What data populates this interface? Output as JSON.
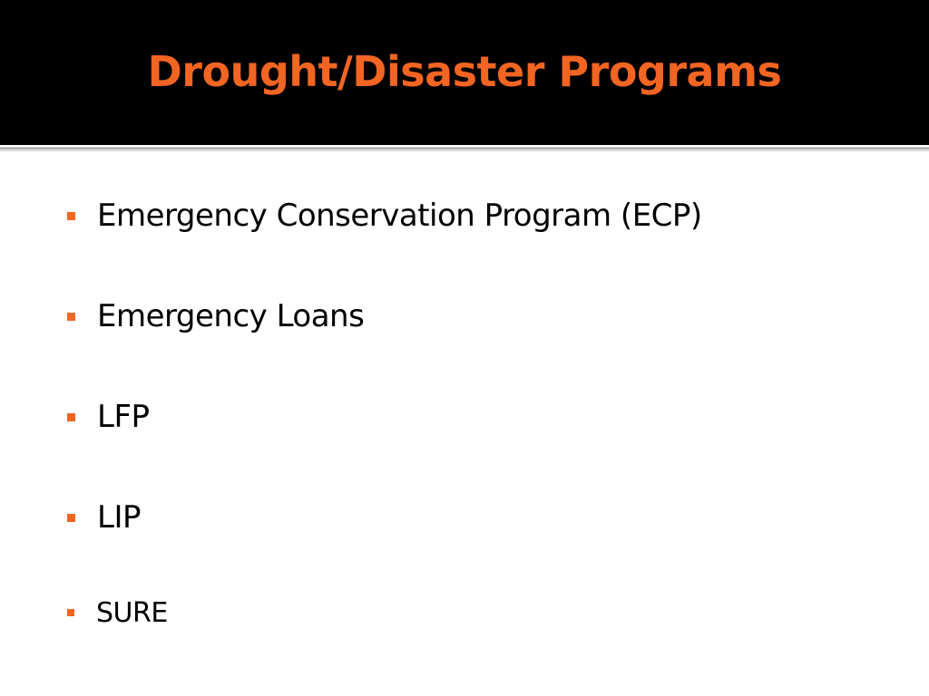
{
  "slide": {
    "title": "Drought/Disaster Programs",
    "bullets": [
      {
        "text": "Emergency Conservation Program (ECP)"
      },
      {
        "text": "Emergency Loans"
      },
      {
        "text": "LFP"
      },
      {
        "text": "LIP"
      },
      {
        "text": "SURE"
      }
    ]
  },
  "colors": {
    "header_background": "#000000",
    "title": "#f26522",
    "bullet_marker": "#f26522",
    "body_background": "#ffffff",
    "body_text": "#000000"
  }
}
